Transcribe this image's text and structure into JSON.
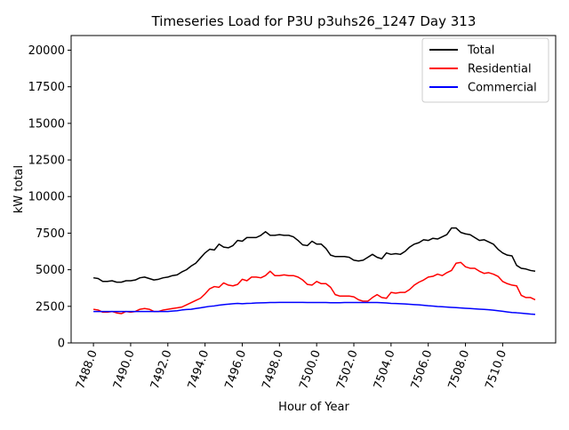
{
  "chart_data": {
    "type": "line",
    "title": "Timeseries Load for P3U p3uhs26_1247  Day 313",
    "xlabel": "Hour of Year",
    "ylabel": "kW total",
    "xlim": [
      7486.8,
      7512.85
    ],
    "ylim": [
      0,
      21000
    ],
    "xticks": [
      7488,
      7490,
      7492,
      7494,
      7496,
      7498,
      7500,
      7502,
      7504,
      7506,
      7508,
      7510
    ],
    "xtick_labels": [
      "7488.0",
      "7490.0",
      "7492.0",
      "7494.0",
      "7496.0",
      "7498.0",
      "7500.0",
      "7502.0",
      "7504.0",
      "7506.0",
      "7508.0",
      "7510.0"
    ],
    "yticks": [
      0,
      2500,
      5000,
      7500,
      10000,
      12500,
      15000,
      17500,
      20000
    ],
    "ytick_labels": [
      "0",
      "2500",
      "5000",
      "7500",
      "10000",
      "12500",
      "15000",
      "17500",
      "20000"
    ],
    "legend_position": "top-right",
    "x": [
      7488.0,
      7488.25,
      7488.5,
      7488.75,
      7489.0,
      7489.25,
      7489.5,
      7489.75,
      7490.0,
      7490.25,
      7490.5,
      7490.75,
      7491.0,
      7491.25,
      7491.5,
      7491.75,
      7492.0,
      7492.25,
      7492.5,
      7492.75,
      7493.0,
      7493.25,
      7493.5,
      7493.75,
      7494.0,
      7494.25,
      7494.5,
      7494.75,
      7495.0,
      7495.25,
      7495.5,
      7495.75,
      7496.0,
      7496.25,
      7496.5,
      7496.75,
      7497.0,
      7497.25,
      7497.5,
      7497.75,
      7498.0,
      7498.25,
      7498.5,
      7498.75,
      7499.0,
      7499.25,
      7499.5,
      7499.75,
      7500.0,
      7500.25,
      7500.5,
      7500.75,
      7501.0,
      7501.25,
      7501.5,
      7501.75,
      7502.0,
      7502.25,
      7502.5,
      7502.75,
      7503.0,
      7503.25,
      7503.5,
      7503.75,
      7504.0,
      7504.25,
      7504.5,
      7504.75,
      7505.0,
      7505.25,
      7505.5,
      7505.75,
      7506.0,
      7506.25,
      7506.5,
      7506.75,
      7507.0,
      7507.25,
      7507.5,
      7507.75,
      7508.0,
      7508.25,
      7508.5,
      7508.75,
      7509.0,
      7509.25,
      7509.5,
      7509.75,
      7510.0,
      7510.25,
      7510.5,
      7510.75,
      7511.0,
      7511.25,
      7511.5,
      7511.75
    ],
    "series": [
      {
        "name": "Total",
        "color": "#000000",
        "values": [
          4450,
          4400,
          4200,
          4200,
          4250,
          4150,
          4150,
          4250,
          4250,
          4300,
          4450,
          4500,
          4400,
          4300,
          4350,
          4450,
          4500,
          4600,
          4650,
          4850,
          5000,
          5250,
          5450,
          5800,
          6150,
          6400,
          6350,
          6750,
          6550,
          6500,
          6650,
          7000,
          6950,
          7200,
          7200,
          7200,
          7350,
          7600,
          7350,
          7350,
          7400,
          7350,
          7350,
          7250,
          7000,
          6700,
          6650,
          6950,
          6750,
          6750,
          6450,
          6000,
          5900,
          5900,
          5900,
          5850,
          5650,
          5600,
          5650,
          5850,
          6050,
          5850,
          5750,
          6150,
          6050,
          6100,
          6050,
          6250,
          6550,
          6750,
          6850,
          7050,
          7000,
          7150,
          7100,
          7250,
          7400,
          7850,
          7850,
          7550,
          7450,
          7400,
          7200,
          7000,
          7050,
          6900,
          6750,
          6400,
          6150,
          6000,
          5950,
          5300,
          5100,
          5050,
          4950,
          4900
        ]
      },
      {
        "name": "Residential",
        "color": "#ff0000",
        "values": [
          2300,
          2250,
          2100,
          2100,
          2150,
          2050,
          2000,
          2150,
          2100,
          2150,
          2300,
          2350,
          2300,
          2150,
          2150,
          2250,
          2300,
          2350,
          2400,
          2450,
          2600,
          2750,
          2900,
          3050,
          3350,
          3700,
          3850,
          3800,
          4100,
          3950,
          3900,
          4000,
          4350,
          4250,
          4500,
          4500,
          4450,
          4600,
          4900,
          4600,
          4600,
          4650,
          4600,
          4600,
          4500,
          4300,
          4000,
          3950,
          4200,
          4050,
          4050,
          3800,
          3300,
          3200,
          3200,
          3200,
          3150,
          2950,
          2850,
          2850,
          3100,
          3300,
          3100,
          3050,
          3450,
          3400,
          3450,
          3450,
          3650,
          3950,
          4150,
          4300,
          4500,
          4550,
          4700,
          4600,
          4800,
          4950,
          5450,
          5500,
          5200,
          5100,
          5100,
          4900,
          4750,
          4800,
          4700,
          4550,
          4200,
          4050,
          3950,
          3900,
          3250,
          3100,
          3100,
          2950
        ]
      },
      {
        "name": "Commercial",
        "color": "#0000ff",
        "values": [
          2150,
          2150,
          2150,
          2150,
          2150,
          2150,
          2150,
          2150,
          2150,
          2150,
          2150,
          2150,
          2150,
          2150,
          2150,
          2150,
          2150,
          2180,
          2200,
          2250,
          2280,
          2300,
          2350,
          2400,
          2450,
          2500,
          2530,
          2580,
          2620,
          2650,
          2680,
          2700,
          2680,
          2700,
          2710,
          2730,
          2740,
          2750,
          2760,
          2760,
          2770,
          2770,
          2770,
          2770,
          2770,
          2770,
          2760,
          2760,
          2760,
          2760,
          2760,
          2750,
          2750,
          2750,
          2760,
          2760,
          2760,
          2760,
          2760,
          2760,
          2760,
          2760,
          2750,
          2730,
          2700,
          2690,
          2680,
          2660,
          2640,
          2620,
          2600,
          2570,
          2540,
          2520,
          2490,
          2470,
          2450,
          2430,
          2410,
          2390,
          2370,
          2350,
          2330,
          2310,
          2290,
          2270,
          2240,
          2200,
          2160,
          2120,
          2080,
          2060,
          2030,
          2000,
          1970,
          1950
        ]
      }
    ]
  }
}
